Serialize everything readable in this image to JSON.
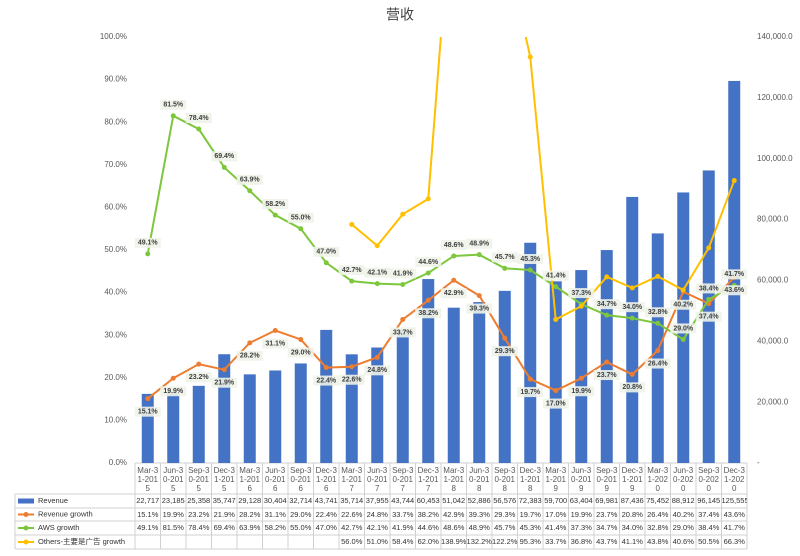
{
  "chart_data": {
    "type": "combo",
    "title": "营收",
    "categories": [
      "Mar-31-2015",
      "Jun-30-2015",
      "Sep-30-2015",
      "Dec-31-2015",
      "Mar-31-2016",
      "Jun-30-2016",
      "Sep-30-2016",
      "Dec-31-2016",
      "Mar-31-2017",
      "Jun-30-2017",
      "Sep-30-2017",
      "Dec-31-2017",
      "Mar-31-2018",
      "Jun-30-2018",
      "Sep-30-2018",
      "Dec-31-2018",
      "Mar-31-2019",
      "Jun-30-2019",
      "Sep-30-2019",
      "Dec-31-2019",
      "Mar-31-2020",
      "Jun-30-2020",
      "Sep-30-2020",
      "Dec-31-2020"
    ],
    "series": [
      {
        "name": "Revenue",
        "type": "bar",
        "axis": "y2",
        "color": "#4472c4",
        "data_labels": false,
        "values": [
          22717,
          23185,
          25358,
          35747,
          29128,
          30404,
          32714,
          43741,
          35714,
          37955,
          43744,
          60453,
          51042,
          52886,
          56576,
          72383,
          59700,
          63404,
          69981,
          87436,
          75452,
          88912,
          96145,
          125555
        ],
        "value_labels": [
          "22,717",
          "23,185",
          "25,358",
          "35,747",
          "29,128",
          "30,404",
          "32,714",
          "43,741",
          "35,714",
          "37,955",
          "43,744",
          "60,453",
          "51,042",
          "52,886",
          "56,576",
          "72,383",
          "59,700",
          "63,404",
          "69,981",
          "87,436",
          "75,452",
          "88,912",
          "96,145",
          "125,555"
        ]
      },
      {
        "name": "Revenue growth",
        "type": "line",
        "color": "#ed7d31",
        "data_labels": true,
        "values": [
          15.1,
          19.9,
          23.2,
          21.9,
          28.2,
          31.1,
          29.0,
          22.4,
          22.6,
          24.8,
          33.7,
          38.2,
          42.9,
          39.3,
          29.3,
          19.7,
          17.0,
          19.9,
          23.7,
          20.8,
          26.4,
          40.2,
          37.4,
          43.6
        ],
        "value_labels": [
          "15.1%",
          "19.9%",
          "23.2%",
          "21.9%",
          "28.2%",
          "31.1%",
          "29.0%",
          "22.4%",
          "22.6%",
          "24.8%",
          "33.7%",
          "38.2%",
          "42.9%",
          "39.3%",
          "29.3%",
          "19.7%",
          "17.0%",
          "19.9%",
          "23.7%",
          "20.8%",
          "26.4%",
          "40.2%",
          "37.4%",
          "43.6%"
        ]
      },
      {
        "name": "AWS growth",
        "type": "line",
        "color": "#7dc73c",
        "data_labels": true,
        "values": [
          49.1,
          81.5,
          78.4,
          69.4,
          63.9,
          58.2,
          55.0,
          47.0,
          42.7,
          42.1,
          41.9,
          44.6,
          48.6,
          48.9,
          45.7,
          45.3,
          41.4,
          37.3,
          34.7,
          34.0,
          32.8,
          29.0,
          38.4,
          41.7
        ],
        "value_labels": [
          "49.1%",
          "81.5%",
          "78.4%",
          "69.4%",
          "63.9%",
          "58.2%",
          "55.0%",
          "47.0%",
          "42.7%",
          "42.1%",
          "41.9%",
          "44.6%",
          "48.6%",
          "48.9%",
          "45.7%",
          "45.3%",
          "41.4%",
          "37.3%",
          "34.7%",
          "34.0%",
          "32.8%",
          "29.0%",
          "38.4%",
          "41.7%"
        ]
      },
      {
        "name": "Others-主要是广告 growth",
        "type": "line",
        "color": "#ffc000",
        "data_labels": false,
        "values": [
          null,
          null,
          null,
          null,
          null,
          null,
          null,
          null,
          56.0,
          51.0,
          58.4,
          62.0,
          138.9,
          132.2,
          122.2,
          95.3,
          33.7,
          36.8,
          43.7,
          41.1,
          43.8,
          40.6,
          50.5,
          66.3
        ],
        "value_labels": [
          null,
          null,
          null,
          null,
          null,
          null,
          null,
          null,
          "56.0%",
          "51.0%",
          "58.4%",
          "62.0%",
          "138.9%",
          "132.2%",
          "122.2%",
          "95.3%",
          "33.7%",
          "36.8%",
          "43.7%",
          "41.1%",
          "43.8%",
          "40.6%",
          "50.5%",
          "66.3%"
        ]
      }
    ],
    "ylim": [
      0,
      100
    ],
    "yticks": [
      {
        "value": 0,
        "label": "0.0%"
      },
      {
        "value": 10,
        "label": "10.0%"
      },
      {
        "value": 20,
        "label": "20.0%"
      },
      {
        "value": 30,
        "label": "30.0%"
      },
      {
        "value": 40,
        "label": "40.0%"
      },
      {
        "value": 50,
        "label": "50.0%"
      },
      {
        "value": 60,
        "label": "60.0%"
      },
      {
        "value": 70,
        "label": "70.0%"
      },
      {
        "value": 80,
        "label": "80.0%"
      },
      {
        "value": 90,
        "label": "90.0%"
      },
      {
        "value": 100,
        "label": "100.0%"
      }
    ],
    "y2lim": [
      0,
      140000
    ],
    "y2ticks": [
      {
        "value": 0,
        "label": "-"
      },
      {
        "value": 20000,
        "label": "20,000.0"
      },
      {
        "value": 40000,
        "label": "40,000.0"
      },
      {
        "value": 60000,
        "label": "60,000.0"
      },
      {
        "value": 80000,
        "label": "80,000.0"
      },
      {
        "value": 100000,
        "label": "100,000.0"
      },
      {
        "value": 120000,
        "label": "120,000.0"
      },
      {
        "value": 140000,
        "label": "140,000.0"
      }
    ],
    "grid": false
  }
}
